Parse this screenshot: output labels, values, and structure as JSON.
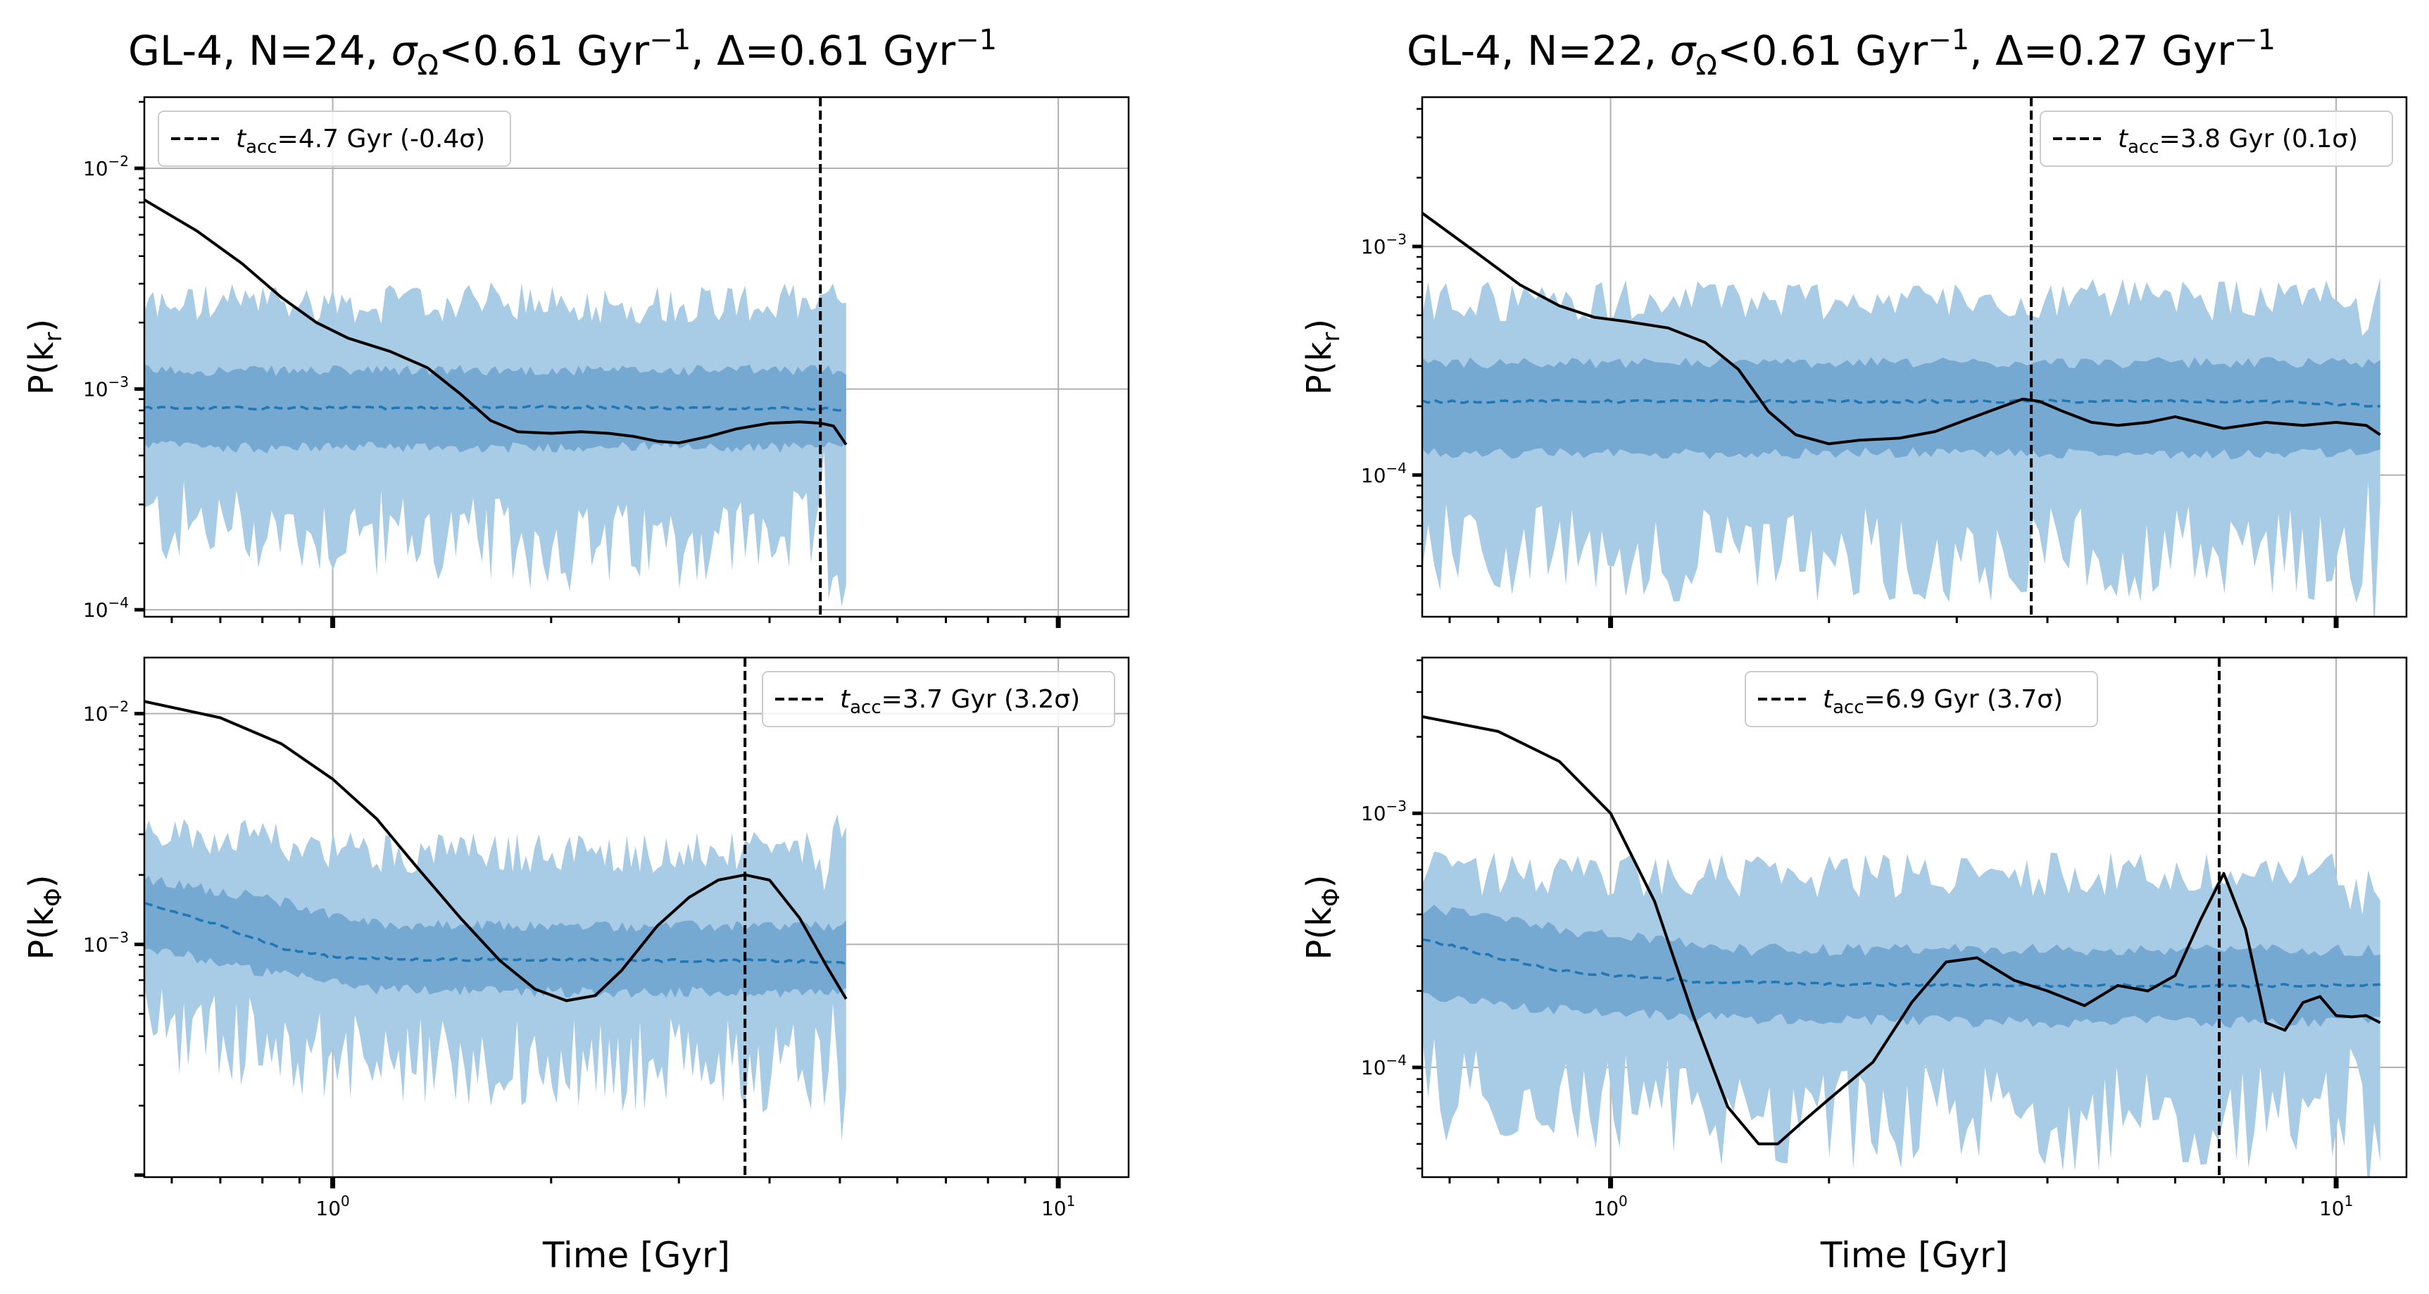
{
  "colors": {
    "band_outer": "#a9cce6",
    "band_inner": "#76a9d2",
    "median": "#1f77b4",
    "data_line": "#000000",
    "grid": "#b0b0b0"
  },
  "xaxis_label": "Time [Gyr]",
  "chart_data": [
    {
      "id": "left",
      "type": "line",
      "title": "GL-4, N=24, σ_Ω<0.61 Gyr⁻¹, Δ=0.61 Gyr⁻¹",
      "title_parts": {
        "pre": "GL-4, N=24, ",
        "sym": "σ",
        "sub": "Ω",
        "lt": "<0.61 Gyr",
        "exp1": "−1",
        "mid": ", Δ=0.61 Gyr",
        "exp2": "−1"
      },
      "xlim": [
        0.55,
        12.5
      ],
      "x_ticklabels": [
        {
          "v": 1,
          "base": "10",
          "exp": "0"
        },
        {
          "v": 10,
          "base": "10",
          "exp": "1"
        }
      ],
      "xlabel": "Time [Gyr]",
      "panels": [
        {
          "id": "left-top",
          "ylabel": "P(k_r)",
          "ylabel_main": "P(k",
          "ylabel_sub": "r",
          "ylabel_end": ")",
          "ylim": [
            9.3e-05,
            0.021
          ],
          "y_ticks": [
            {
              "v": 0.0001,
              "base": "10",
              "exp": "−4"
            },
            {
              "v": 0.001,
              "base": "10",
              "exp": "−3"
            },
            {
              "v": 0.01,
              "base": "10",
              "exp": "−2"
            }
          ],
          "t_acc": 4.7,
          "legend": "t_acc=4.7 Gyr (-0.4σ)",
          "legend_rest": "=4.7 Gyr (-0.4σ)",
          "legend_pos": "top-left",
          "band_t": [
            0.55,
            5.1
          ],
          "band_end": 5.1,
          "band_outer": {
            "lo": [
              0.00025,
              0.00023,
              0.00022,
              0.0002,
              0.00019,
              0.00021,
              0.00022
            ],
            "hi": [
              0.0024,
              0.0025,
              0.0024,
              0.0025,
              0.0024,
              0.0025,
              0.0024
            ]
          },
          "band_inner": {
            "lo": [
              0.00056,
              0.00054,
              0.00055,
              0.00054,
              0.00055,
              0.00054,
              0.00055
            ],
            "hi": [
              0.00122,
              0.00121,
              0.00121,
              0.00122,
              0.00121,
              0.00122,
              0.00122
            ]
          },
          "median": {
            "x": [
              0.55,
              1.0,
              2.0,
              3.0,
              4.0,
              5.1
            ],
            "y": [
              0.00082,
              0.00082,
              0.00083,
              0.00082,
              0.00082,
              0.00081
            ]
          },
          "curve": {
            "x": [
              0.55,
              0.65,
              0.75,
              0.85,
              0.95,
              1.05,
              1.2,
              1.35,
              1.5,
              1.65,
              1.8,
              2.0,
              2.2,
              2.4,
              2.6,
              2.8,
              3.0,
              3.3,
              3.6,
              4.0,
              4.4,
              4.7,
              4.9,
              5.1
            ],
            "y": [
              0.0072,
              0.0052,
              0.0037,
              0.0026,
              0.002,
              0.0017,
              0.00148,
              0.00125,
              0.00095,
              0.00072,
              0.00064,
              0.00063,
              0.00064,
              0.00063,
              0.00061,
              0.00058,
              0.00057,
              0.00061,
              0.00066,
              0.0007,
              0.00071,
              0.0007,
              0.00068,
              0.00056
            ]
          }
        },
        {
          "id": "left-bottom",
          "ylabel": "P(k_Φ)",
          "ylabel_main": "P(k",
          "ylabel_sub": "Φ",
          "ylabel_end": ")",
          "ylim": [
            9.8e-05,
            0.0175
          ],
          "y_ticks": [
            {
              "v": 0.001,
              "base": "10",
              "exp": "−3"
            },
            {
              "v": 0.01,
              "base": "10",
              "exp": "−2"
            }
          ],
          "t_acc": 3.7,
          "legend": "t_acc=3.7 Gyr (3.2σ)",
          "legend_rest": "=3.7 Gyr (3.2σ)",
          "legend_pos": "top-right",
          "band_t": [
            0.55,
            5.1
          ],
          "band_end": 5.1,
          "band_outer": {
            "lo": [
              0.00045,
              0.00037,
              0.00031,
              0.0003,
              0.0003,
              0.0003,
              0.00031
            ],
            "hi": [
              0.003,
              0.0028,
              0.0025,
              0.0025,
              0.0025,
              0.0025,
              0.0025
            ]
          },
          "band_inner": {
            "lo": [
              0.00098,
              0.00076,
              0.00064,
              0.00063,
              0.00062,
              0.00062,
              0.00062
            ],
            "hi": [
              0.0019,
              0.0016,
              0.00122,
              0.0012,
              0.0012,
              0.0012,
              0.0012
            ]
          },
          "median": {
            "x": [
              0.55,
              0.7,
              0.85,
              1.0,
              1.3,
              2.0,
              3.0,
              4.0,
              5.1
            ],
            "y": [
              0.0015,
              0.0012,
              0.00096,
              0.00088,
              0.00086,
              0.00086,
              0.00085,
              0.00085,
              0.00083
            ]
          },
          "curve": {
            "x": [
              0.55,
              0.7,
              0.85,
              1.0,
              1.15,
              1.3,
              1.5,
              1.7,
              1.9,
              2.1,
              2.3,
              2.5,
              2.8,
              3.1,
              3.4,
              3.7,
              4.0,
              4.4,
              4.8,
              5.1
            ],
            "y": [
              0.0113,
              0.0096,
              0.0074,
              0.0052,
              0.0035,
              0.0022,
              0.0013,
              0.00085,
              0.00064,
              0.00057,
              0.0006,
              0.00077,
              0.0012,
              0.0016,
              0.0019,
              0.002,
              0.0019,
              0.0013,
              0.0008,
              0.00058
            ]
          }
        }
      ]
    },
    {
      "id": "right",
      "type": "line",
      "title": "GL-4, N=22, σ_Ω<0.61 Gyr⁻¹, Δ=0.27 Gyr⁻¹",
      "title_parts": {
        "pre": "GL-4, N=22, ",
        "sym": "σ",
        "sub": "Ω",
        "lt": "<0.61 Gyr",
        "exp1": "−1",
        "mid": ", Δ=0.27 Gyr",
        "exp2": "−1"
      },
      "xlim": [
        0.55,
        12.5
      ],
      "x_ticklabels": [
        {
          "v": 1,
          "base": "10",
          "exp": "0"
        },
        {
          "v": 10,
          "base": "10",
          "exp": "1"
        }
      ],
      "xlabel": "Time [Gyr]",
      "panels": [
        {
          "id": "right-top",
          "ylabel": "P(k_r)",
          "ylabel_main": "P(k",
          "ylabel_sub": "r",
          "ylabel_end": ")",
          "ylim": [
            2.4e-05,
            0.0045
          ],
          "y_ticks": [
            {
              "v": 0.0001,
              "base": "10",
              "exp": "−4"
            },
            {
              "v": 0.001,
              "base": "10",
              "exp": "−3"
            }
          ],
          "t_acc": 3.8,
          "legend": "t_acc=3.8 Gyr (0.1σ)",
          "legend_rest": "=3.8 Gyr (0.1σ)",
          "legend_pos": "top-right",
          "band_t": [
            0.55,
            11.5
          ],
          "band_end": 11.5,
          "band_outer": {
            "lo": [
              4.8e-05,
              4.6e-05,
              4.4e-05,
              4.5e-05,
              4.5e-05,
              4.6e-05,
              4.5e-05
            ],
            "hi": [
              0.00058,
              0.00058,
              0.00059,
              0.00058,
              0.00059,
              0.00058,
              0.00059
            ]
          },
          "band_inner": {
            "lo": [
              0.000125,
              0.000124,
              0.000124,
              0.000125,
              0.000124,
              0.000124,
              0.000125
            ],
            "hi": [
              0.00031,
              0.00031,
              0.00031,
              0.00031,
              0.00031,
              0.00031,
              0.00031
            ]
          },
          "median": {
            "x": [
              0.55,
              1.0,
              2.0,
              4.0,
              8.0,
              11.5
            ],
            "y": [
              0.00021,
              0.00021,
              0.00021,
              0.00021,
              0.00021,
              0.0002
            ]
          },
          "curve": {
            "x": [
              0.55,
              0.65,
              0.75,
              0.85,
              0.95,
              1.05,
              1.2,
              1.35,
              1.5,
              1.65,
              1.8,
              2.0,
              2.2,
              2.5,
              2.8,
              3.1,
              3.4,
              3.7,
              3.9,
              4.2,
              4.6,
              5.0,
              5.5,
              6.0,
              7.0,
              8.0,
              9.0,
              10.0,
              11.0,
              11.5
            ],
            "y": [
              0.0014,
              0.00095,
              0.00068,
              0.00055,
              0.00049,
              0.00047,
              0.00044,
              0.00038,
              0.00029,
              0.00019,
              0.00015,
              0.000137,
              0.000142,
              0.000145,
              0.000155,
              0.000175,
              0.000195,
              0.000215,
              0.00021,
              0.00019,
              0.00017,
              0.000165,
              0.00017,
              0.00018,
              0.00016,
              0.00017,
              0.000165,
              0.00017,
              0.000165,
              0.00015
            ]
          }
        },
        {
          "id": "right-bottom",
          "ylabel": "P(k_Φ)",
          "ylabel_main": "P(k",
          "ylabel_sub": "Φ",
          "ylabel_end": ")",
          "ylim": [
            3.7e-05,
            0.0041
          ],
          "y_ticks": [
            {
              "v": 0.0001,
              "base": "10",
              "exp": "−4"
            },
            {
              "v": 0.001,
              "base": "10",
              "exp": "−3"
            }
          ],
          "t_acc": 6.9,
          "legend": "t_acc=6.9 Gyr (3.7σ)",
          "legend_rest": "=6.9 Gyr (3.7σ)",
          "legend_pos": "top-center",
          "band_t": [
            0.55,
            11.5
          ],
          "band_end": 11.5,
          "band_outer": {
            "lo": [
              8.5e-05,
              7.2e-05,
              6.5e-05,
              6.4e-05,
              6.3e-05,
              6.4e-05,
              6.4e-05
            ],
            "hi": [
              0.00058,
              0.00057,
              0.00057,
              0.00057,
              0.00058,
              0.00057,
              0.00058
            ]
          },
          "band_inner": {
            "lo": [
              0.00019,
              0.000165,
              0.000155,
              0.000152,
              0.000151,
              0.000151,
              0.000151
            ],
            "hi": [
              0.00042,
              0.00034,
              0.00029,
              0.00029,
              0.00029,
              0.00029,
              0.00029
            ]
          },
          "median": {
            "x": [
              0.55,
              0.7,
              0.85,
              1.0,
              1.3,
              2.0,
              4.0,
              8.0,
              11.5
            ],
            "y": [
              0.00032,
              0.00027,
              0.00024,
              0.00023,
              0.000218,
              0.000212,
              0.00021,
              0.00021,
              0.00021
            ]
          },
          "curve": {
            "x": [
              0.55,
              0.7,
              0.85,
              1.0,
              1.15,
              1.3,
              1.45,
              1.6,
              1.7,
              1.85,
              2.0,
              2.3,
              2.6,
              2.9,
              3.2,
              3.6,
              4.0,
              4.5,
              5.0,
              5.5,
              6.0,
              6.5,
              7.0,
              7.5,
              8.0,
              8.5,
              9.0,
              9.5,
              10.0,
              10.5,
              11.0,
              11.5
            ],
            "y": [
              0.0024,
              0.0021,
              0.0016,
              0.001,
              0.00045,
              0.00016,
              7e-05,
              5e-05,
              5e-05,
              6.2e-05,
              7.5e-05,
              0.000105,
              0.00018,
              0.00026,
              0.00027,
              0.00022,
              0.0002,
              0.000175,
              0.00021,
              0.0002,
              0.00023,
              0.00038,
              0.00058,
              0.00035,
              0.00015,
              0.00014,
              0.00018,
              0.00019,
              0.00016,
              0.000158,
              0.00016,
              0.00015
            ]
          }
        }
      ]
    }
  ]
}
